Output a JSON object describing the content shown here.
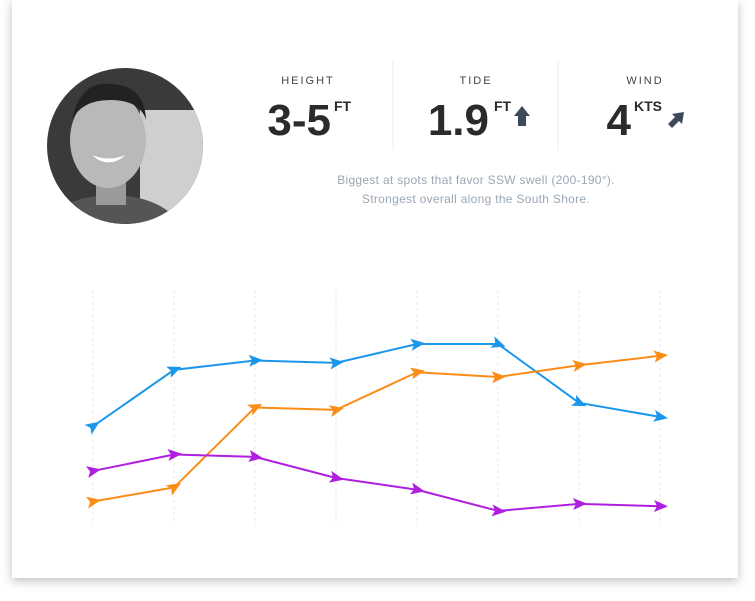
{
  "stats": [
    {
      "label": "HEIGHT",
      "value": "3-5",
      "unit": "FT"
    },
    {
      "label": "TIDE",
      "value": "1.9",
      "unit": "FT"
    },
    {
      "label": "WIND",
      "value": "4",
      "unit": "KTS"
    }
  ],
  "description": [
    "Biggest at spots that favor SSW swell (200-190°).",
    "Strongest overall along the South Shore."
  ],
  "chart_data": {
    "type": "line",
    "ylim": [
      0,
      10
    ],
    "grid": true,
    "categories": [
      null,
      null,
      null,
      null,
      null,
      null,
      null,
      null
    ],
    "series": [
      {
        "color": "#1a96ea",
        "values": [
          4.2,
          6.6,
          7.0,
          6.9,
          7.7,
          7.7,
          5.2,
          4.6
        ]
      },
      {
        "color": "#fb8c16",
        "values": [
          1.0,
          1.6,
          5.0,
          4.9,
          6.5,
          6.3,
          6.8,
          7.2
        ]
      },
      {
        "color": "#b01ee0",
        "values": [
          2.3,
          3.0,
          2.9,
          2.0,
          1.5,
          0.6,
          0.9,
          0.8
        ]
      }
    ]
  }
}
